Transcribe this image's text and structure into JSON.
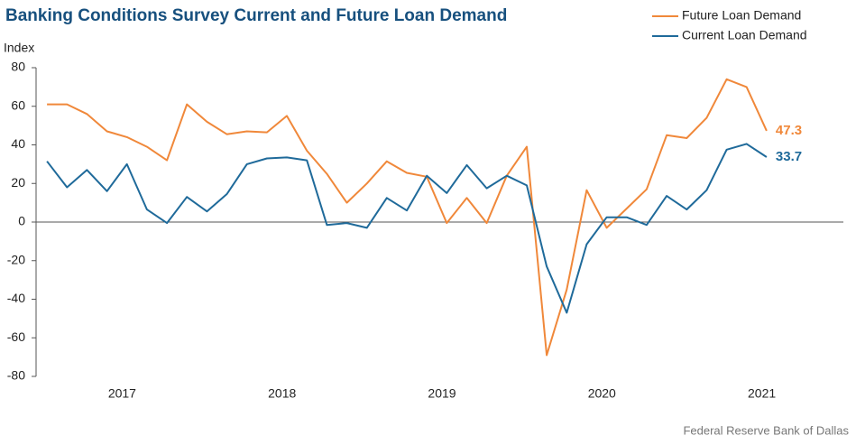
{
  "chart_data": {
    "type": "line",
    "title": "Banking Conditions Survey Current and Future Loan Demand",
    "y_label": "Index",
    "source": "Federal Reserve Bank of Dallas",
    "x": [
      2017,
      2017.125,
      2017.25,
      2017.375,
      2017.5,
      2017.625,
      2017.75,
      2017.875,
      2018,
      2018.125,
      2018.25,
      2018.375,
      2018.5,
      2018.625,
      2018.75,
      2018.875,
      2019,
      2019.125,
      2019.25,
      2019.375,
      2019.5,
      2019.625,
      2019.75,
      2019.875,
      2020,
      2020.125,
      2020.25,
      2020.375,
      2020.5,
      2020.625,
      2020.75,
      2020.875,
      2021,
      2021.125,
      2021.25,
      2021.375,
      2021.5
    ],
    "series": [
      {
        "name": "Future Loan Demand",
        "color": "#f0883a",
        "values": [
          61,
          61,
          56,
          47,
          44,
          39,
          32,
          61,
          52,
          45.5,
          47,
          46.5,
          55,
          37,
          25,
          10,
          20,
          31.5,
          25.5,
          23.5,
          -0.5,
          12.5,
          -0.5,
          24,
          39,
          -69,
          -35,
          16.5,
          -3,
          7,
          17,
          45,
          43.5,
          54,
          74,
          70,
          47.3
        ]
      },
      {
        "name": "Current Loan Demand",
        "color": "#1f6a9a",
        "values": [
          31.5,
          18,
          27,
          16,
          30,
          6.5,
          -0.5,
          13,
          5.5,
          14.5,
          30,
          33,
          33.5,
          32,
          -1.5,
          -0.5,
          -3,
          12.5,
          6,
          24,
          15,
          29.5,
          17.5,
          24,
          19,
          -23,
          -47,
          -11.5,
          2.5,
          2.5,
          -1.5,
          13.5,
          6.5,
          16.5,
          37.5,
          40.5,
          33.7
        ]
      }
    ],
    "xlim": [
      2016.96,
      2021.98
    ],
    "xticks": [
      2017,
      2018,
      2019,
      2020,
      2021
    ],
    "ylim": [
      -80,
      80
    ],
    "yticks": [
      -80,
      -60,
      -40,
      -20,
      0,
      20,
      40,
      60,
      80
    ],
    "legend": "top-right"
  }
}
